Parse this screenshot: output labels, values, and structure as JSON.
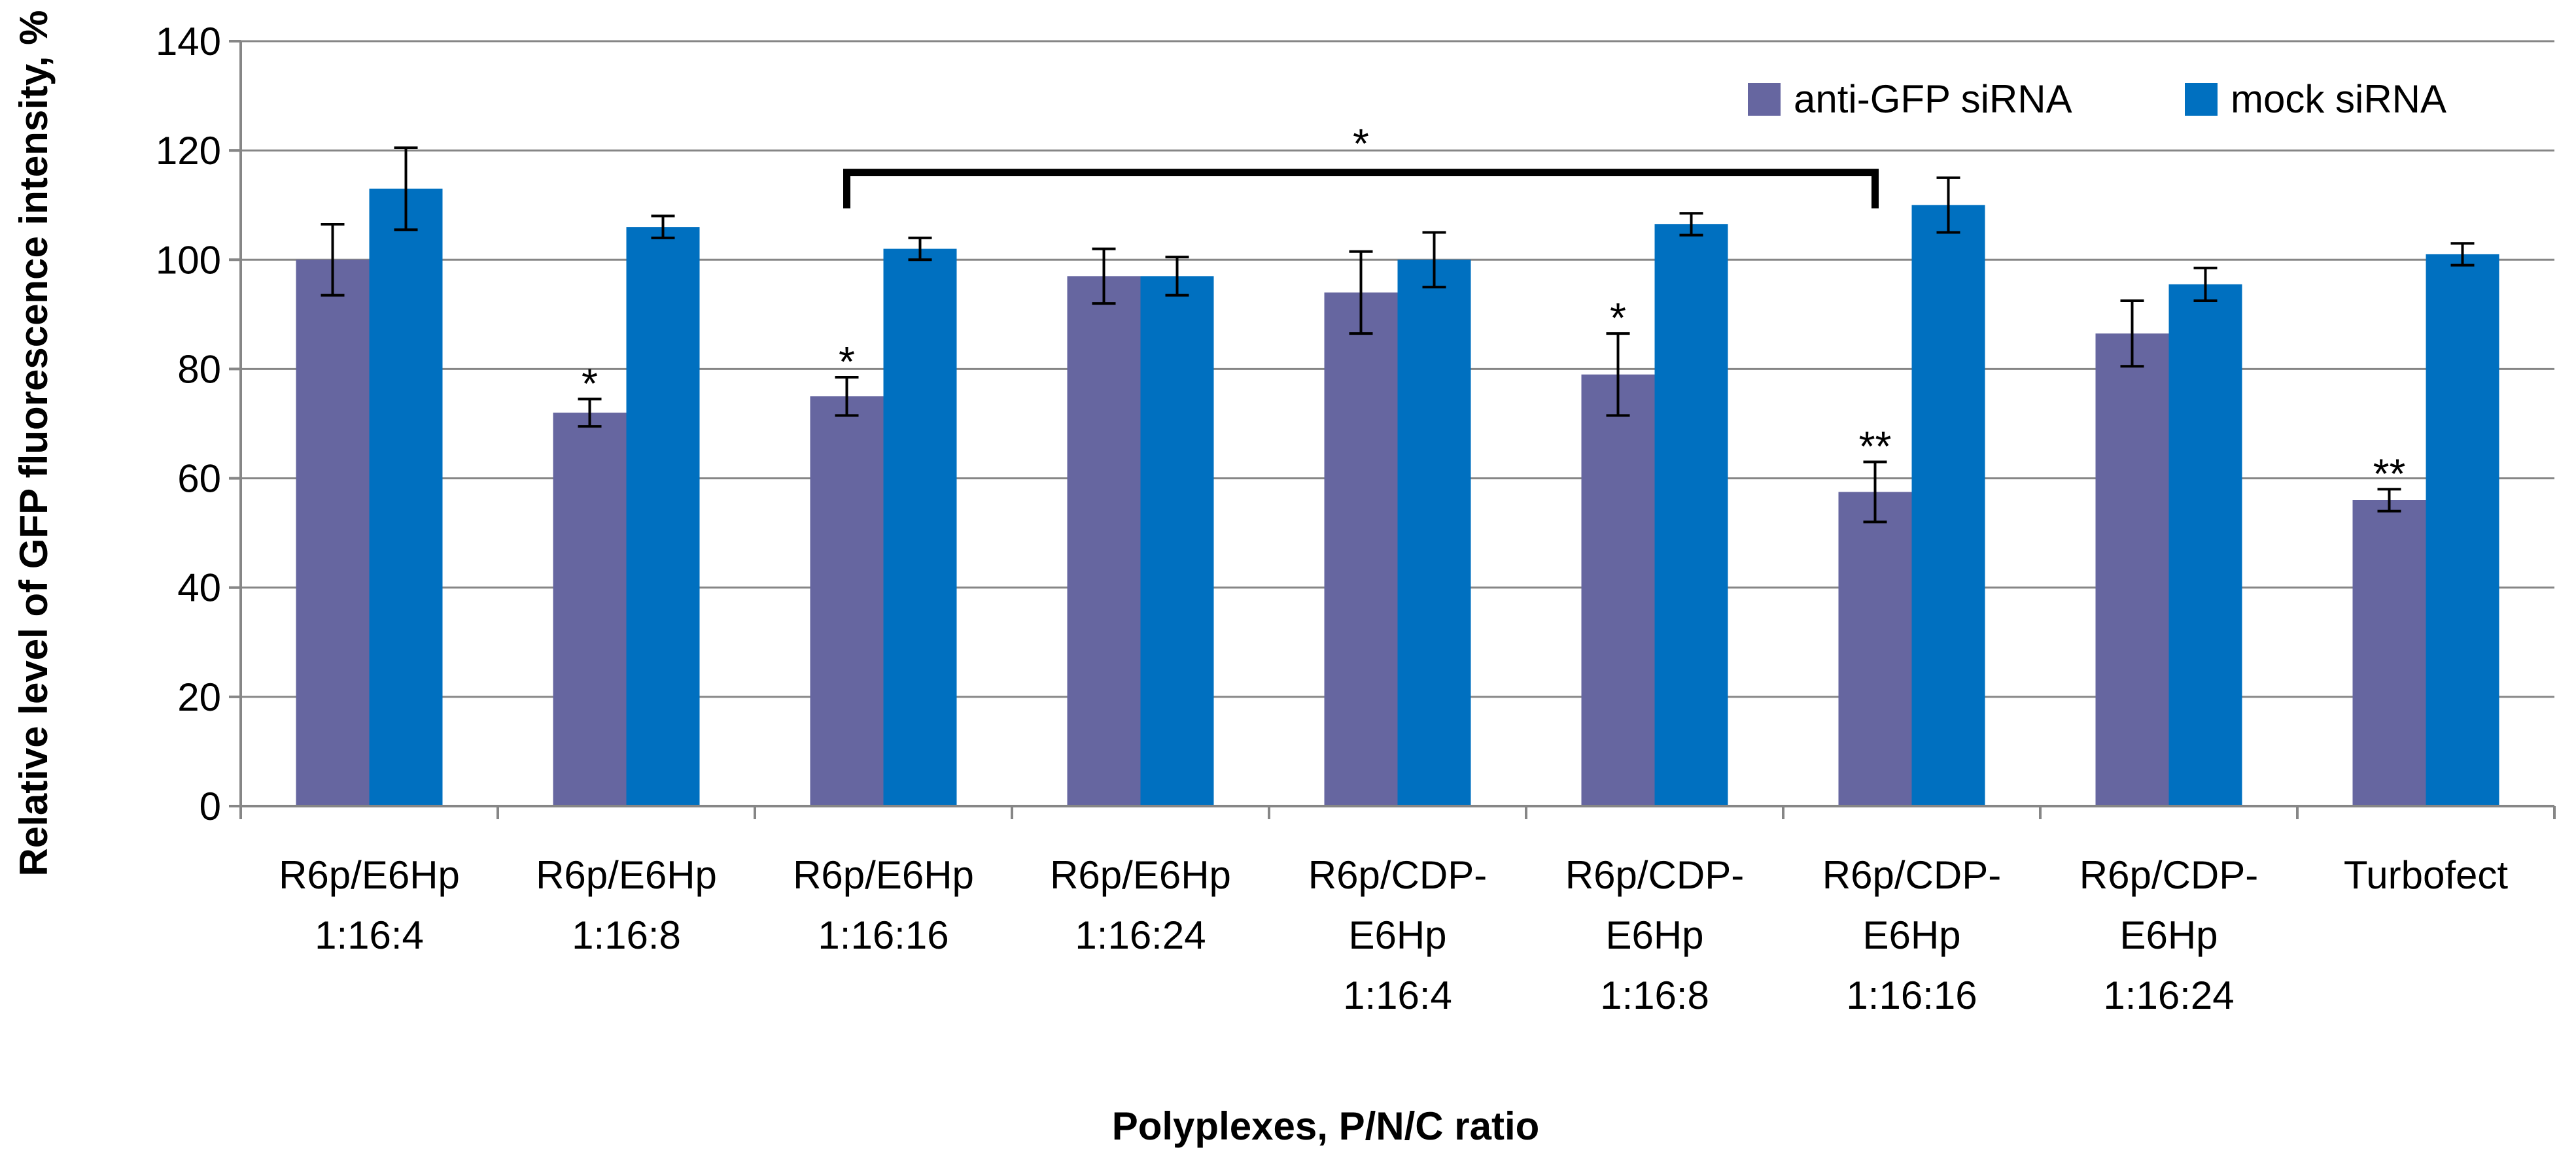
{
  "chart_data": {
    "type": "bar",
    "title": "",
    "xlabel": "Polyplexes, P/N/C ratio",
    "ylabel": "Relative level of GFP fluorescence intensity, %",
    "ylim": [
      0,
      140
    ],
    "yticks": [
      "0",
      "20",
      "40",
      "60",
      "80",
      "100",
      "120",
      "140"
    ],
    "ytick_values": [
      0,
      20,
      40,
      60,
      80,
      100,
      120,
      140
    ],
    "grid": true,
    "legend_position": "top-right",
    "categories": [
      [
        "R6p/E6Hp",
        "1:16:4"
      ],
      [
        "R6p/E6Hp",
        "1:16:8"
      ],
      [
        "R6p/E6Hp",
        "1:16:16"
      ],
      [
        "R6p/E6Hp",
        "1:16:24"
      ],
      [
        "R6p/CDP-",
        "E6Hp",
        "1:16:4"
      ],
      [
        "R6p/CDP-",
        "E6Hp",
        "1:16:8"
      ],
      [
        "R6p/CDP-",
        "E6Hp",
        "1:16:16"
      ],
      [
        "R6p/CDP-",
        "E6Hp",
        "1:16:24"
      ],
      [
        "Turbofect"
      ]
    ],
    "series": [
      {
        "name": "anti-GFP siRNA",
        "color": "#6666A0",
        "values": [
          100,
          72,
          75,
          97,
          94,
          79,
          57.5,
          86.5,
          56
        ],
        "errors": [
          6.5,
          2.5,
          3.5,
          5,
          7.5,
          7.5,
          5.5,
          6,
          2
        ],
        "annotations": [
          "",
          "*",
          "*",
          "",
          "",
          "*",
          "**",
          "",
          "**"
        ]
      },
      {
        "name": "mock siRNA",
        "color": "#0070C0",
        "values": [
          113,
          106,
          102,
          97,
          100,
          106.5,
          110,
          95.5,
          101
        ],
        "errors": [
          7.5,
          2,
          2,
          3.5,
          5,
          2,
          5,
          3,
          2
        ],
        "annotations": [
          "",
          "",
          "",
          "",
          "",
          "",
          "",
          "",
          ""
        ]
      }
    ],
    "bracket": {
      "from_category": 2,
      "to_category": 6,
      "label": "*",
      "y_value": 116
    }
  }
}
